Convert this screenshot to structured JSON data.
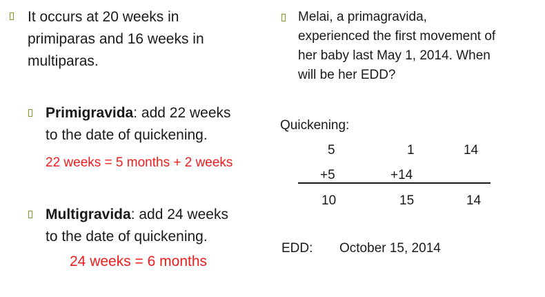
{
  "left": {
    "bullet1": {
      "lines": [
        "It occurs at 20 weeks in",
        "primiparas and 16 weeks in",
        "multiparas."
      ]
    },
    "primigravida": {
      "term": "Primigravida",
      "line1_rest": ": add 22 weeks",
      "line2": "to the date of quickening.",
      "note": "22 weeks = 5 months + 2 weeks"
    },
    "multigravida": {
      "term": "Multigravida",
      "line1_rest": ": add 24 weeks",
      "line2": "to the date of quickening.",
      "note": "24 weeks = 6 months"
    }
  },
  "right": {
    "question": {
      "lines": [
        "Melai, a primagravida,",
        "experienced the first movement of",
        "her baby last May 1, 2014.  When",
        "will be her EDD?"
      ]
    },
    "quickening_label": "Quickening:",
    "calc": {
      "row1": [
        "5",
        "1",
        "14"
      ],
      "row2": [
        "+5",
        "+14"
      ],
      "row3": [
        "10",
        "15",
        "14"
      ]
    },
    "edd_label": "EDD:",
    "edd_value": "October 15, 2014"
  },
  "colors": {
    "accent_bullet": "#7aa01e",
    "red_text": "#ee1c1c",
    "text": "#1a1a1a"
  }
}
